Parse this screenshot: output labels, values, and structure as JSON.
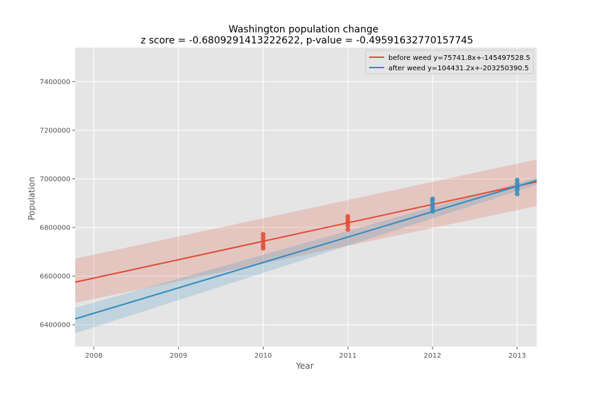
{
  "chart_data": {
    "type": "scatter",
    "title": "Washington population change",
    "subtitle": "z score = -0.6809291413222622, p-value = -0.49591632770157745",
    "xlabel": "Year",
    "ylabel": "Population",
    "xlim": [
      2007.78,
      2013.23
    ],
    "ylim": [
      6310000,
      7540000
    ],
    "xticks": [
      2008,
      2009,
      2010,
      2011,
      2012,
      2013
    ],
    "yticks": [
      6400000,
      6600000,
      6800000,
      7000000,
      7200000,
      7400000
    ],
    "grid": true,
    "legend_position": "top-right",
    "series": [
      {
        "name": "before weed y=75741.8x+-145497528.5",
        "color": "#e24a33",
        "slope": 75741.8,
        "intercept": -145497528.5,
        "fit_x": [
          2007.78,
          2013.23
        ],
        "band_lower": [
          6490000,
          6888000
        ],
        "band_upper": [
          6672000,
          7080000
        ],
        "points": [
          {
            "x": 2010,
            "y": 6715000
          },
          {
            "x": 2010,
            "y": 6728000
          },
          {
            "x": 2010,
            "y": 6743000
          },
          {
            "x": 2010,
            "y": 6757000
          },
          {
            "x": 2010,
            "y": 6772000
          },
          {
            "x": 2011,
            "y": 6792000
          },
          {
            "x": 2011,
            "y": 6808000
          },
          {
            "x": 2011,
            "y": 6822000
          },
          {
            "x": 2011,
            "y": 6833000
          },
          {
            "x": 2011,
            "y": 6846000
          }
        ]
      },
      {
        "name": "after weed y=104431.2x+-203250390.5",
        "color": "#348abd",
        "slope": 104431.2,
        "intercept": -203250390.5,
        "fit_x": [
          2007.78,
          2013.23
        ],
        "band_lower": [
          6365000,
          6975000
        ],
        "band_upper": [
          6470000,
          7005000
        ],
        "points": [
          {
            "x": 2012,
            "y": 6867000
          },
          {
            "x": 2012,
            "y": 6882000
          },
          {
            "x": 2012,
            "y": 6893000
          },
          {
            "x": 2012,
            "y": 6908000
          },
          {
            "x": 2012,
            "y": 6918000
          },
          {
            "x": 2013,
            "y": 6938000
          },
          {
            "x": 2013,
            "y": 6954000
          },
          {
            "x": 2013,
            "y": 6966000
          },
          {
            "x": 2013,
            "y": 6981000
          },
          {
            "x": 2013,
            "y": 6995000
          }
        ]
      }
    ]
  }
}
